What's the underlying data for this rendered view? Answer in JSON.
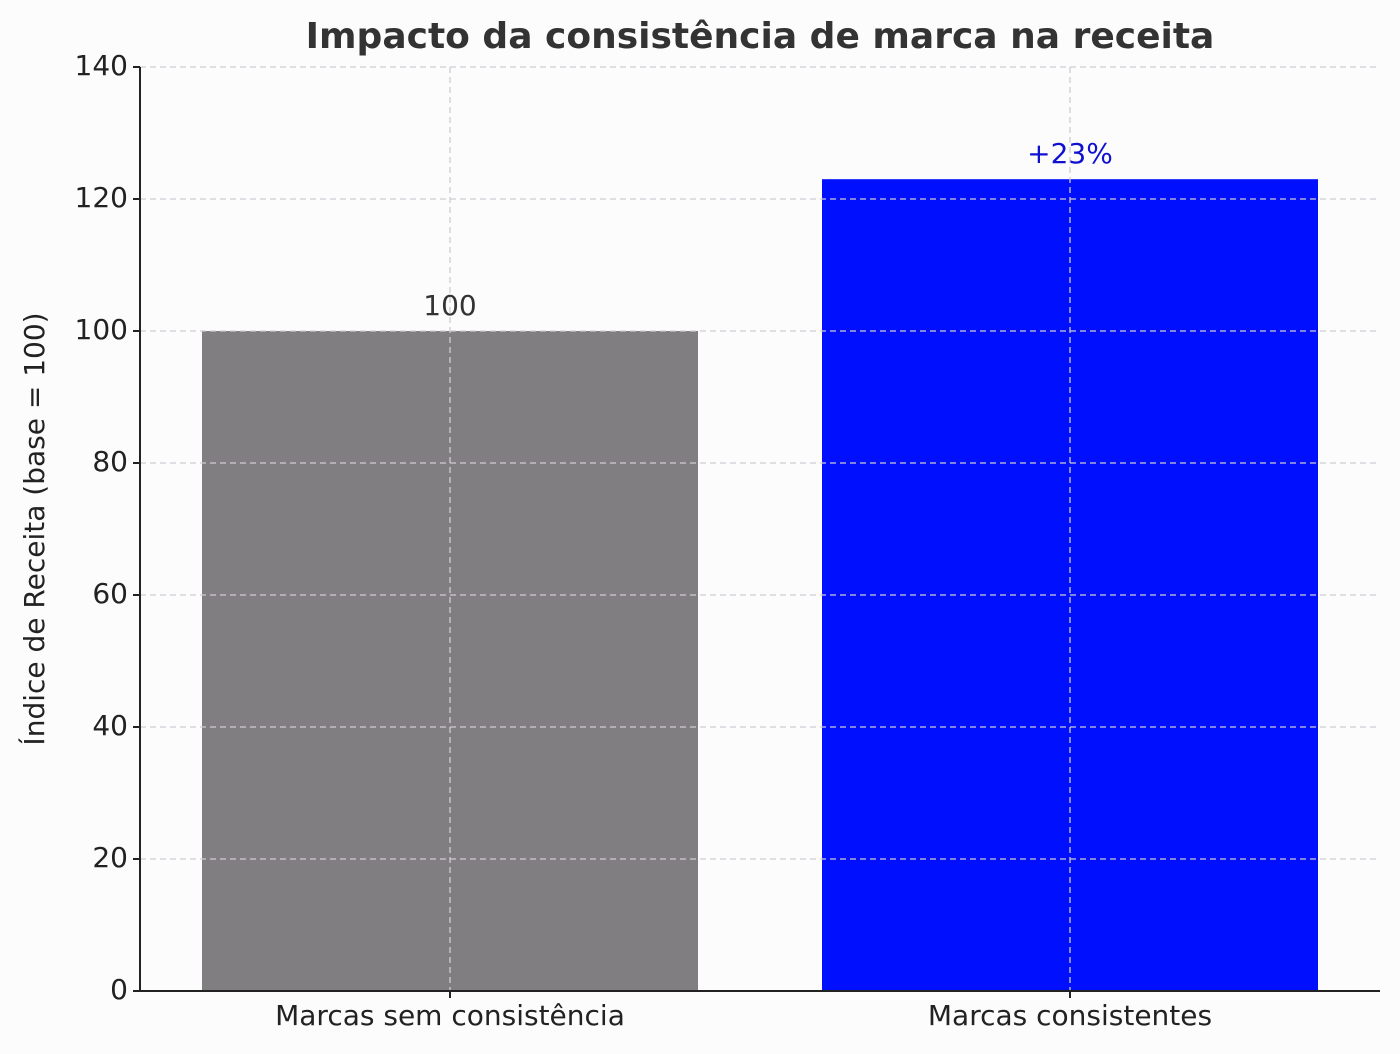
{
  "chart_data": {
    "type": "bar",
    "title": "Impacto da consistência de marca na receita",
    "y_label": "Índice de Receita (base = 100)",
    "categories": [
      "Marcas sem consistência",
      "Marcas consistentes"
    ],
    "values": [
      100,
      123
    ],
    "colors": [
      "#807e81",
      "#0010ff"
    ],
    "annotation": "+23%",
    "annotation_color": "#1010d0",
    "ylim": [
      0,
      140
    ],
    "yticks": [
      0,
      20,
      40,
      60,
      80,
      100,
      120,
      140
    ],
    "grid": true
  }
}
